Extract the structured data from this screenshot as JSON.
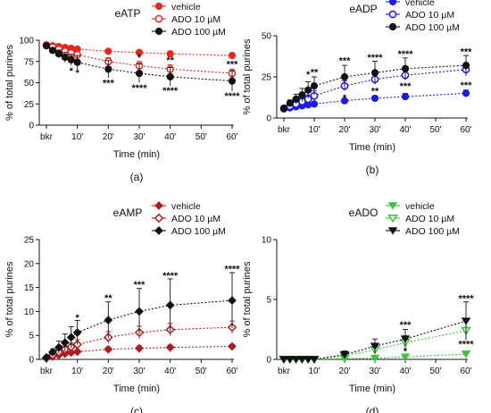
{
  "chart_data": [
    {
      "type": "line",
      "panel_label": "(a)",
      "title": "eATP",
      "xlabel": "Time (min)",
      "ylabel": "% of total purines",
      "ylim": [
        0,
        100
      ],
      "yticks": [
        0,
        25,
        50,
        75,
        100
      ],
      "xticks": [
        "bkr",
        "10'",
        "20'",
        "30'",
        "40'",
        "50'",
        "60'"
      ],
      "grid": false,
      "legend_position": "top-right",
      "series": [
        {
          "name": "vehicle",
          "color": "#e8271f",
          "marker": "circle-filled",
          "x": [
            0,
            2,
            4,
            6,
            8,
            10,
            20,
            30,
            40,
            60
          ],
          "y": [
            94.5,
            93.5,
            92.5,
            91.5,
            90.5,
            89.5,
            87,
            85.5,
            84,
            82
          ],
          "err": [
            1,
            1,
            1,
            1,
            1,
            1,
            1.5,
            1.5,
            1.5,
            2.5
          ]
        },
        {
          "name": "ADO 10 µM",
          "color": "#e8271f",
          "marker": "circle-open",
          "x": [
            0,
            2,
            4,
            6,
            8,
            10,
            20,
            30,
            40,
            60
          ],
          "y": [
            94,
            92,
            89.5,
            87,
            85,
            83,
            75,
            70,
            66,
            61
          ],
          "err": [
            1,
            2,
            3,
            3.5,
            4,
            4.5,
            4.5,
            5,
            5,
            5
          ]
        },
        {
          "name": "ADO 100 µM",
          "color": "#111111",
          "marker": "circle-filled",
          "x": [
            0,
            2,
            4,
            6,
            8,
            10,
            20,
            30,
            40,
            60
          ],
          "y": [
            93.5,
            88,
            84,
            80,
            77,
            74,
            66,
            61,
            57,
            52
          ],
          "err": [
            1,
            3,
            4.5,
            6,
            6.5,
            8,
            10,
            11,
            11,
            12
          ]
        }
      ],
      "annotations": [
        {
          "x": 8,
          "y": 64,
          "text": "*"
        },
        {
          "x": 10,
          "y": 62,
          "text": "*"
        },
        {
          "x": 20,
          "y": 50,
          "text": "***"
        },
        {
          "x": 30,
          "y": 44,
          "text": "****"
        },
        {
          "x": 40,
          "y": 41,
          "text": "****"
        },
        {
          "x": 60,
          "y": 35,
          "text": "****"
        },
        {
          "x": 30,
          "y": 80,
          "text": "*"
        },
        {
          "x": 40,
          "y": 77,
          "text": "**"
        },
        {
          "x": 60,
          "y": 72,
          "text": "***"
        }
      ]
    },
    {
      "type": "line",
      "panel_label": "(b)",
      "title": "eADP",
      "xlabel": "Time (min)",
      "ylabel": "% of total purines",
      "ylim": [
        0,
        50
      ],
      "yticks": [
        0,
        25,
        50
      ],
      "xticks": [
        "bkr",
        "10'",
        "20'",
        "30'",
        "40'",
        "50'",
        "60'"
      ],
      "grid": false,
      "legend_position": "top-right",
      "series": [
        {
          "name": "vehicle",
          "color": "#1a1aee",
          "marker": "circle-filled",
          "x": [
            0,
            2,
            4,
            6,
            8,
            10,
            20,
            30,
            40,
            60
          ],
          "y": [
            5.5,
            6.2,
            6.8,
            7.4,
            8,
            8.5,
            10.5,
            12,
            13,
            15
          ],
          "err": [
            0.5,
            0.5,
            0.6,
            0.7,
            0.8,
            1,
            1.5,
            1.5,
            2,
            2
          ]
        },
        {
          "name": "ADO 10 µM",
          "color": "#1a1aee",
          "marker": "circle-open",
          "x": [
            0,
            2,
            4,
            6,
            8,
            10,
            20,
            30,
            40,
            60
          ],
          "y": [
            5.8,
            7.2,
            8.5,
            10,
            11.5,
            13.5,
            19.5,
            23.5,
            26,
            29.5
          ],
          "err": [
            0.5,
            1,
            1.5,
            2,
            2.5,
            3,
            3,
            3,
            3,
            4
          ]
        },
        {
          "name": "ADO 100 µM",
          "color": "#111111",
          "marker": "circle-filled",
          "x": [
            0,
            2,
            4,
            6,
            8,
            10,
            20,
            30,
            40,
            60
          ],
          "y": [
            6,
            9,
            11.5,
            14,
            17,
            19.5,
            25,
            27.5,
            30,
            32
          ],
          "err": [
            0.5,
            2,
            3,
            4,
            5,
            5.5,
            7,
            7,
            6.5,
            6
          ]
        }
      ],
      "annotations": [
        {
          "x": 8,
          "y": 26.5,
          "text": "*"
        },
        {
          "x": 10,
          "y": 28,
          "text": "**"
        },
        {
          "x": 20,
          "y": 35,
          "text": "***"
        },
        {
          "x": 30,
          "y": 37,
          "text": "****"
        },
        {
          "x": 40,
          "y": 39,
          "text": "****"
        },
        {
          "x": 60,
          "y": 40.5,
          "text": "***"
        },
        {
          "x": 20,
          "y": 12.5,
          "text": "*"
        },
        {
          "x": 30,
          "y": 16.5,
          "text": "**"
        },
        {
          "x": 40,
          "y": 19.5,
          "text": "***"
        },
        {
          "x": 60,
          "y": 20,
          "text": "***"
        }
      ]
    },
    {
      "type": "line",
      "panel_label": "(c)",
      "title": "eAMP",
      "xlabel": "Time (min)",
      "ylabel": "% of total purines",
      "ylim": [
        0,
        25
      ],
      "yticks": [
        0,
        5,
        10,
        15,
        20,
        25
      ],
      "xticks": [
        "bkr",
        "10'",
        "20'",
        "30'",
        "40'",
        "50'",
        "60'"
      ],
      "grid": false,
      "legend_position": "top-right",
      "series": [
        {
          "name": "vehicle",
          "color": "#b3191e",
          "marker": "diamond-filled",
          "x": [
            0,
            2,
            4,
            6,
            8,
            10,
            20,
            30,
            40,
            60
          ],
          "y": [
            0.3,
            0.6,
            0.9,
            1.2,
            1.4,
            1.6,
            2.1,
            2.3,
            2.5,
            2.7
          ],
          "err": [
            0.1,
            0.2,
            0.2,
            0.3,
            0.3,
            0.3,
            0.5,
            0.5,
            0.5,
            0.4
          ]
        },
        {
          "name": "ADO 10 µM",
          "color": "#b3191e",
          "marker": "diamond-open",
          "x": [
            0,
            2,
            4,
            6,
            8,
            10,
            20,
            30,
            40,
            60
          ],
          "y": [
            0.3,
            0.9,
            1.5,
            2.1,
            2.6,
            3.1,
            4.6,
            5.6,
            6.2,
            6.7
          ],
          "err": [
            0.1,
            0.3,
            0.5,
            0.7,
            0.8,
            1,
            1.2,
            1.3,
            1.3,
            1.3
          ]
        },
        {
          "name": "ADO 100 µM",
          "color": "#111111",
          "marker": "diamond-filled",
          "x": [
            0,
            2,
            4,
            6,
            8,
            10,
            20,
            30,
            40,
            60
          ],
          "y": [
            0.4,
            1.5,
            2.5,
            3.5,
            4.6,
            5.6,
            8.2,
            10,
            11.3,
            12.3
          ],
          "err": [
            0.2,
            0.7,
            1.3,
            1.8,
            2.2,
            2.5,
            3.8,
            4.8,
            5.5,
            5.8
          ]
        }
      ],
      "annotations": [
        {
          "x": 10,
          "y": 8.8,
          "text": "*"
        },
        {
          "x": 20,
          "y": 12.9,
          "text": "**"
        },
        {
          "x": 30,
          "y": 15.7,
          "text": "***"
        },
        {
          "x": 40,
          "y": 17.5,
          "text": "****"
        },
        {
          "x": 60,
          "y": 18.9,
          "text": "****"
        }
      ]
    },
    {
      "type": "line",
      "panel_label": "(d)",
      "title": "eADO",
      "xlabel": "Time (min)",
      "ylabel": "% of total purines",
      "ylim": [
        0,
        10
      ],
      "yticks": [
        0,
        5,
        10
      ],
      "xticks": [
        "bkr",
        "10'",
        "20'",
        "30'",
        "40'",
        "50'",
        "60'"
      ],
      "grid": false,
      "legend_position": "top-right",
      "series": [
        {
          "name": "vehicle",
          "color": "#3cc43c",
          "marker": "triangle-down-filled",
          "x": [
            0,
            2,
            4,
            6,
            8,
            10,
            20,
            30,
            40,
            60
          ],
          "y": [
            0,
            0,
            0,
            0,
            0,
            0,
            0.05,
            0.1,
            0.2,
            0.45
          ],
          "err": [
            0,
            0,
            0,
            0,
            0,
            0,
            0.05,
            0.05,
            0.1,
            0.15
          ]
        },
        {
          "name": "ADO 10 µM",
          "color": "#3cc43c",
          "marker": "triangle-down-open",
          "x": [
            0,
            2,
            4,
            6,
            8,
            10,
            20,
            30,
            40,
            60
          ],
          "y": [
            0,
            0,
            0,
            0,
            0,
            0,
            0.3,
            0.8,
            1.4,
            2.4
          ],
          "err": [
            0,
            0,
            0,
            0,
            0,
            0,
            0.2,
            0.4,
            0.6,
            0.8
          ]
        },
        {
          "name": "ADO 100 µM",
          "color": "#111111",
          "marker": "triangle-down-filled",
          "x": [
            0,
            2,
            4,
            6,
            8,
            10,
            20,
            30,
            40,
            60
          ],
          "y": [
            0,
            0,
            0,
            0,
            0,
            0,
            0.4,
            1.1,
            1.7,
            3.2
          ],
          "err": [
            0,
            0,
            0,
            0,
            0,
            0,
            0.3,
            0.6,
            0.8,
            1.6
          ]
        }
      ],
      "annotations": [
        {
          "x": 40,
          "y": 2.9,
          "text": "***"
        },
        {
          "x": 40,
          "y": 0.7,
          "text": "*"
        },
        {
          "x": 60,
          "y": 5.1,
          "text": "****"
        },
        {
          "x": 60,
          "y": 1.3,
          "text": "****"
        }
      ]
    }
  ]
}
